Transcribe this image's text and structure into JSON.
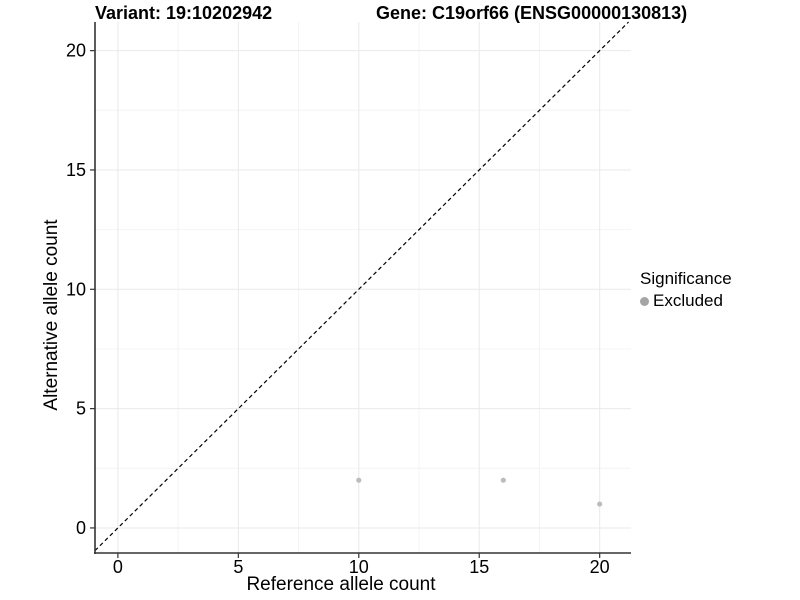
{
  "header": {
    "variant_title": "Variant: 19:10202942",
    "gene_title": "Gene: C19orf66 (ENSG00000130813)"
  },
  "chart_data": {
    "type": "scatter",
    "xlabel": "Reference allele count",
    "ylabel": "Alternative allele count",
    "xlim": [
      -0.95,
      21.3
    ],
    "ylim": [
      -1.05,
      21.2
    ],
    "x_ticks": [
      0,
      5,
      10,
      15,
      20
    ],
    "y_ticks": [
      0,
      5,
      10,
      15,
      20
    ],
    "x_minor_ticks": [
      2.5,
      7.5,
      12.5,
      17.5
    ],
    "y_minor_ticks": [
      2.5,
      7.5,
      12.5,
      17.5
    ],
    "grid": true,
    "identity_line": {
      "slope": 1,
      "intercept": 0,
      "style": "dashed",
      "color": "#000000"
    },
    "series": [
      {
        "name": "Excluded",
        "color": "#bcbcbc",
        "points": [
          {
            "x": 10,
            "y": 2
          },
          {
            "x": 16,
            "y": 2
          },
          {
            "x": 20,
            "y": 1
          }
        ]
      }
    ],
    "legend": {
      "title": "Significance",
      "position": "right",
      "items": [
        {
          "label": "Excluded",
          "color": "#a5a5a5"
        }
      ]
    },
    "colors": {
      "background": "#ffffff",
      "grid_major": "#e9e9e9",
      "grid_minor": "#f4f4f4",
      "axis_line": "#333333",
      "tick_text": "#000000"
    }
  }
}
